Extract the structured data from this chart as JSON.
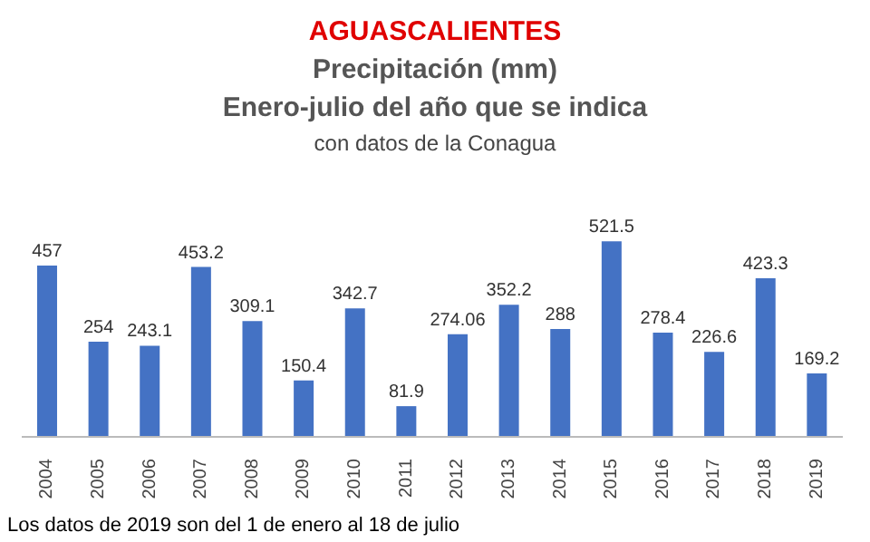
{
  "chart_data": {
    "type": "bar",
    "title": "AGUASCALIENTES",
    "subtitle": "Precipitación (mm)\nEnero-julio del año que se indica\ncon datos de la Conagua",
    "categories": [
      "2004",
      "2005",
      "2006",
      "2007",
      "2008",
      "2009",
      "2010",
      "2011",
      "2012",
      "2013",
      "2014",
      "2015",
      "2016",
      "2017",
      "2018",
      "2019"
    ],
    "values": [
      457,
      254,
      243.1,
      453.2,
      309.1,
      150.4,
      342.7,
      81.9,
      274.06,
      352.2,
      288,
      521.5,
      278.4,
      226.6,
      423.3,
      169.2
    ],
    "color": "#4472c4",
    "data_labels": true,
    "grid": false,
    "legend": false,
    "annotations": [
      "Los datos de 2019 son del 1 de enero al 18 de julio"
    ]
  }
}
